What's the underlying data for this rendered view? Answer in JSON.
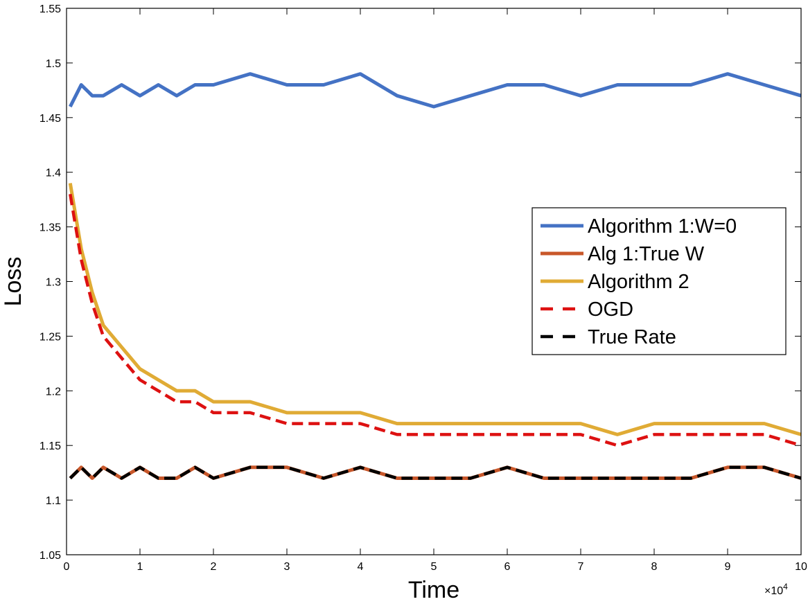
{
  "chart_data": {
    "type": "line",
    "xlabel": "Time",
    "ylabel": "Loss",
    "xlim": [
      0,
      100000
    ],
    "ylim": [
      1.05,
      1.55
    ],
    "x_exponent_label": "×10",
    "x_exponent_power": "4",
    "x_ticks": [
      0,
      10000,
      20000,
      30000,
      40000,
      50000,
      60000,
      70000,
      80000,
      90000,
      100000
    ],
    "x_tick_labels": [
      "0",
      "1",
      "2",
      "3",
      "4",
      "5",
      "6",
      "7",
      "8",
      "9",
      "10"
    ],
    "y_ticks": [
      1.05,
      1.1,
      1.15,
      1.2,
      1.25,
      1.3,
      1.35,
      1.4,
      1.45,
      1.5,
      1.55
    ],
    "y_tick_labels": [
      "1.05",
      "1.1",
      "1.15",
      "1.2",
      "1.25",
      "1.3",
      "1.35",
      "1.4",
      "1.45",
      "1.5",
      "1.55"
    ],
    "grid": false,
    "legend_position": "right",
    "x": [
      500,
      2000,
      3500,
      5000,
      7500,
      10000,
      12500,
      15000,
      17500,
      20000,
      25000,
      30000,
      35000,
      40000,
      45000,
      50000,
      55000,
      60000,
      65000,
      70000,
      75000,
      80000,
      85000,
      90000,
      95000,
      100000
    ],
    "series": [
      {
        "name": "Algorithm 1:W=0",
        "color": "#4472c4",
        "style": "solid",
        "values": [
          1.46,
          1.48,
          1.47,
          1.47,
          1.48,
          1.47,
          1.48,
          1.47,
          1.48,
          1.48,
          1.49,
          1.48,
          1.48,
          1.49,
          1.47,
          1.46,
          1.47,
          1.48,
          1.48,
          1.47,
          1.48,
          1.48,
          1.48,
          1.49,
          1.48,
          1.47
        ]
      },
      {
        "name": "Alg 1:True W",
        "color": "#c8572a",
        "style": "solid",
        "values": [
          1.12,
          1.13,
          1.12,
          1.13,
          1.12,
          1.13,
          1.12,
          1.12,
          1.13,
          1.12,
          1.13,
          1.13,
          1.12,
          1.13,
          1.12,
          1.12,
          1.12,
          1.13,
          1.12,
          1.12,
          1.12,
          1.12,
          1.12,
          1.13,
          1.13,
          1.12
        ]
      },
      {
        "name": "Algorithm 2",
        "color": "#e0ab35",
        "style": "solid",
        "values": [
          1.39,
          1.33,
          1.29,
          1.26,
          1.24,
          1.22,
          1.21,
          1.2,
          1.2,
          1.19,
          1.19,
          1.18,
          1.18,
          1.18,
          1.17,
          1.17,
          1.17,
          1.17,
          1.17,
          1.17,
          1.16,
          1.17,
          1.17,
          1.17,
          1.17,
          1.16
        ]
      },
      {
        "name": "OGD",
        "color": "#dd1111",
        "style": "dashed",
        "values": [
          1.38,
          1.32,
          1.28,
          1.25,
          1.23,
          1.21,
          1.2,
          1.19,
          1.19,
          1.18,
          1.18,
          1.17,
          1.17,
          1.17,
          1.16,
          1.16,
          1.16,
          1.16,
          1.16,
          1.16,
          1.15,
          1.16,
          1.16,
          1.16,
          1.16,
          1.15
        ]
      },
      {
        "name": "True Rate",
        "color": "#000000",
        "style": "dashed",
        "values": [
          1.12,
          1.13,
          1.12,
          1.13,
          1.12,
          1.13,
          1.12,
          1.12,
          1.13,
          1.12,
          1.13,
          1.13,
          1.12,
          1.13,
          1.12,
          1.12,
          1.12,
          1.13,
          1.12,
          1.12,
          1.12,
          1.12,
          1.12,
          1.13,
          1.13,
          1.12
        ]
      }
    ]
  }
}
